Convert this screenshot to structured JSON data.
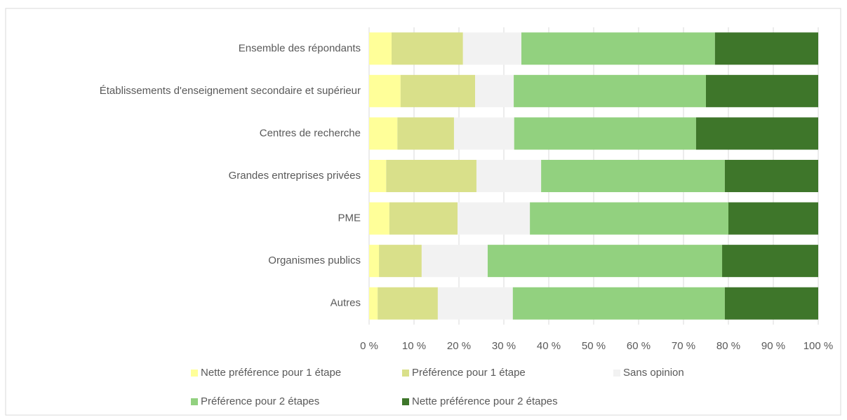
{
  "chart_data": {
    "type": "stacked-bar-horizontal",
    "categories": [
      "Ensemble des répondants",
      "Établissements d'enseignement secondaire et supérieur",
      "Centres de recherche",
      "Grandes entreprises privées",
      "PME",
      "Organismes publics",
      "Autres"
    ],
    "series": [
      {
        "name": "Nette préférence pour 1 étape",
        "color": "#ffff99",
        "values": [
          5.0,
          7.0,
          6.3,
          3.8,
          4.5,
          2.2,
          1.9
        ]
      },
      {
        "name": "Préférence pour 1 étape",
        "color": "#d9e08a",
        "values": [
          15.9,
          16.6,
          12.6,
          20.1,
          15.2,
          9.5,
          13.4
        ]
      },
      {
        "name": "Sans opinion",
        "color": "#f2f2f2",
        "values": [
          13.0,
          8.6,
          13.4,
          14.4,
          16.1,
          14.7,
          16.7
        ]
      },
      {
        "name": "Préférence pour 2 étapes",
        "color": "#92d17f",
        "values": [
          43.1,
          42.8,
          40.5,
          40.9,
          44.2,
          52.2,
          47.2
        ]
      },
      {
        "name": "Nette préférence pour 2 étapes",
        "color": "#3e762a",
        "values": [
          23.0,
          25.0,
          27.2,
          20.8,
          20.0,
          21.4,
          20.8
        ]
      }
    ],
    "xlim": [
      0,
      100
    ],
    "xticks": [
      {
        "value": 0,
        "label": "0 %"
      },
      {
        "value": 10,
        "label": "10 %"
      },
      {
        "value": 20,
        "label": "20 %"
      },
      {
        "value": 30,
        "label": "30 %"
      },
      {
        "value": 40,
        "label": "40 %"
      },
      {
        "value": 50,
        "label": "50 %"
      },
      {
        "value": 60,
        "label": "60 %"
      },
      {
        "value": 70,
        "label": "70 %"
      },
      {
        "value": 80,
        "label": "80 %"
      },
      {
        "value": 90,
        "label": "90 %"
      },
      {
        "value": 100,
        "label": "100 %"
      }
    ],
    "grid": true,
    "legend": "bottom"
  }
}
